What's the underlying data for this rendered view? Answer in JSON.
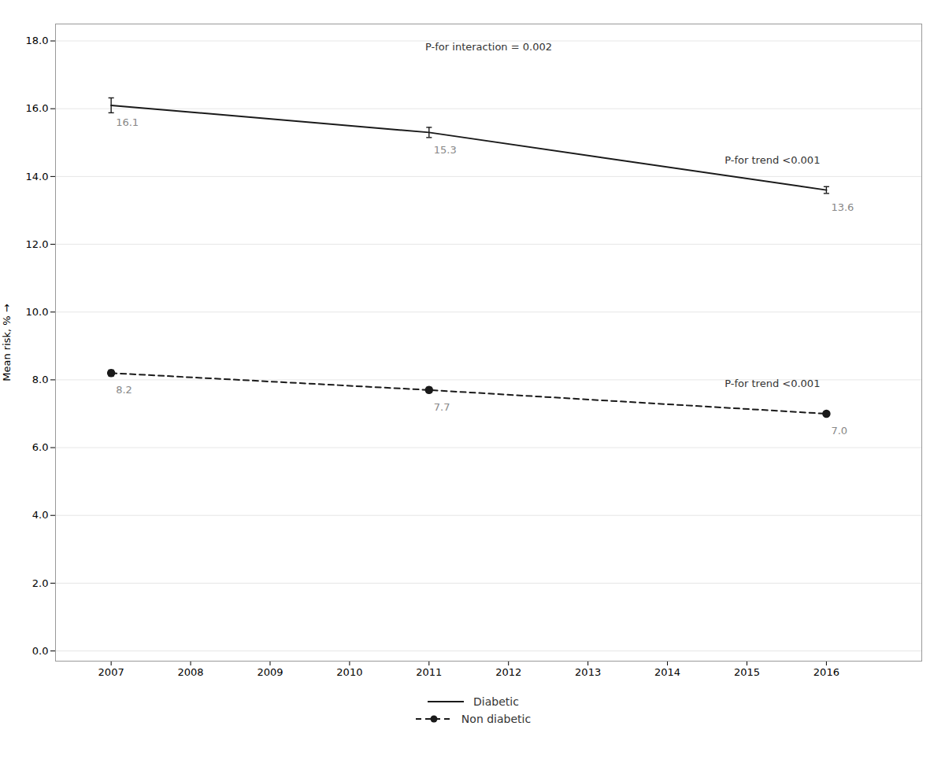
{
  "chart_data": {
    "type": "line",
    "ylabel": "Mean risk, %",
    "x": [
      2007,
      2011,
      2016
    ],
    "series": [
      {
        "name": "Diabetic",
        "color": "#1a1a1a",
        "line_style": "solid",
        "marker": "none",
        "values": [
          16.1,
          15.3,
          13.6
        ],
        "yerr": [
          0.22,
          0.15,
          0.1
        ],
        "value_labels": [
          "16.1",
          "15.3",
          "13.6"
        ]
      },
      {
        "name": "Non diabetic",
        "color": "#1a1a1a",
        "line_style": "dashed",
        "marker": "circle",
        "values": [
          8.2,
          7.7,
          7.0
        ],
        "yerr": [
          0.09,
          0.08,
          0.06
        ],
        "value_labels": [
          "8.2",
          "7.7",
          "7.0"
        ]
      }
    ],
    "annotations": [
      {
        "text": "P-for interaction = 0.002"
      },
      {
        "text": "P-for trend <0.001",
        "series": "Diabetic"
      },
      {
        "text": "P-for trend <0.001",
        "series": "Non diabetic"
      }
    ],
    "xlim": [
      2006.3,
      2017.2
    ],
    "ylim": [
      -0.3,
      18.5
    ],
    "xticks": [
      2007,
      2008,
      2009,
      2010,
      2011,
      2012,
      2013,
      2014,
      2015,
      2016
    ],
    "yticks": [
      {
        "value": 0,
        "label": "0.0"
      },
      {
        "value": 2,
        "label": "2.0"
      },
      {
        "value": 4,
        "label": "4.0"
      },
      {
        "value": 6,
        "label": "6.0"
      },
      {
        "value": 8,
        "label": "8.0"
      },
      {
        "value": 10,
        "label": "10.0"
      },
      {
        "value": 12,
        "label": "12.0"
      },
      {
        "value": 14,
        "label": "14.0"
      },
      {
        "value": 16,
        "label": "16.0"
      },
      {
        "value": 18,
        "label": "18.0"
      }
    ],
    "grid": true,
    "data_labels": true,
    "legend": "bottom"
  }
}
